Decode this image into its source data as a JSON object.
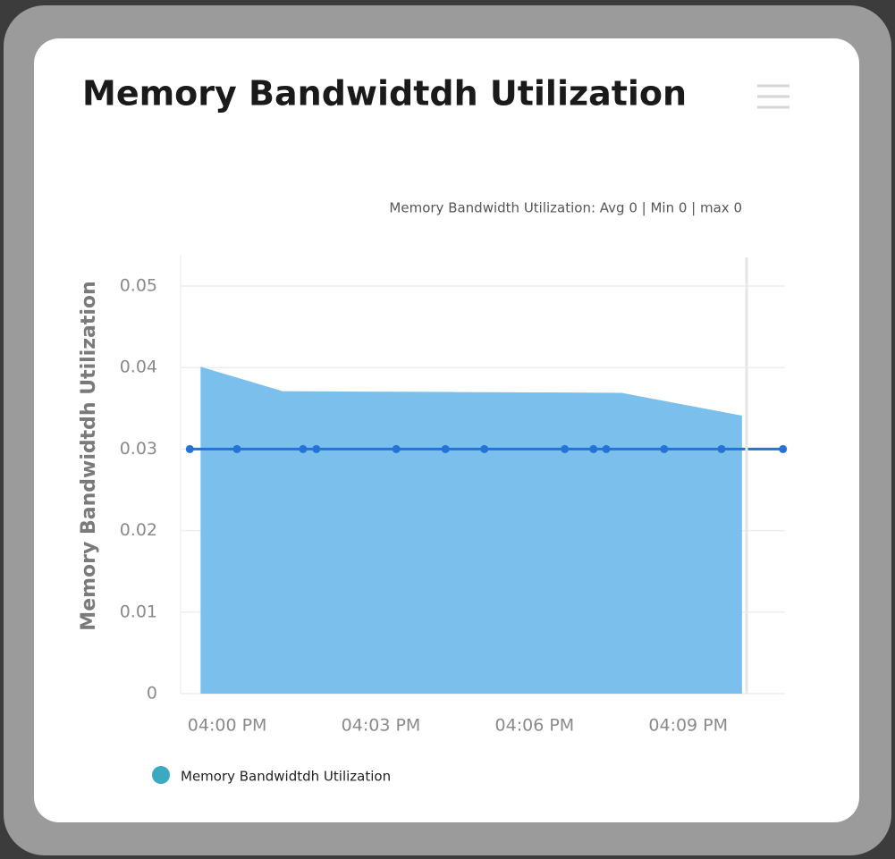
{
  "chart_data": {
    "type": "area",
    "title": "Memory Bandwidtdh Utilization",
    "subtitle": "Memory Bandwidth Utilization: Avg 0 | Min 0 | max 0",
    "y_label": "Memory Bandwidtdh Utilization",
    "xlim": [
      -0.91,
      10.89
    ],
    "xticks": [
      {
        "value": 0,
        "label": "04:00 PM"
      },
      {
        "value": 3,
        "label": "04:03 PM"
      },
      {
        "value": 6,
        "label": "04:06 PM"
      },
      {
        "value": 9,
        "label": "04:09 PM"
      }
    ],
    "ylim": [
      0,
      0.05
    ],
    "yticks": [
      0,
      0.01,
      0.02,
      0.03,
      0.04,
      0.05
    ],
    "grid": true,
    "series": [
      {
        "name": "Memory Bandwidtdh Utilization",
        "color": "#7bbfec",
        "legend_color": "#3ba9c2",
        "x": [
          -0.52,
          1.08,
          4.4,
          7.7,
          10.05
        ],
        "values": [
          0.0401,
          0.0371,
          0.037,
          0.0369,
          0.0341
        ]
      }
    ],
    "threshold_line": {
      "color": "#2673d8",
      "x": [
        -0.73,
        0.19,
        1.48,
        1.74,
        3.3,
        4.26,
        5.02,
        6.59,
        7.15,
        7.4,
        8.53,
        9.65,
        10.85
      ],
      "values": [
        0.03,
        0.03,
        0.03,
        0.03,
        0.03,
        0.03,
        0.03,
        0.03,
        0.03,
        0.03,
        0.03,
        0.03,
        0.03
      ]
    }
  }
}
